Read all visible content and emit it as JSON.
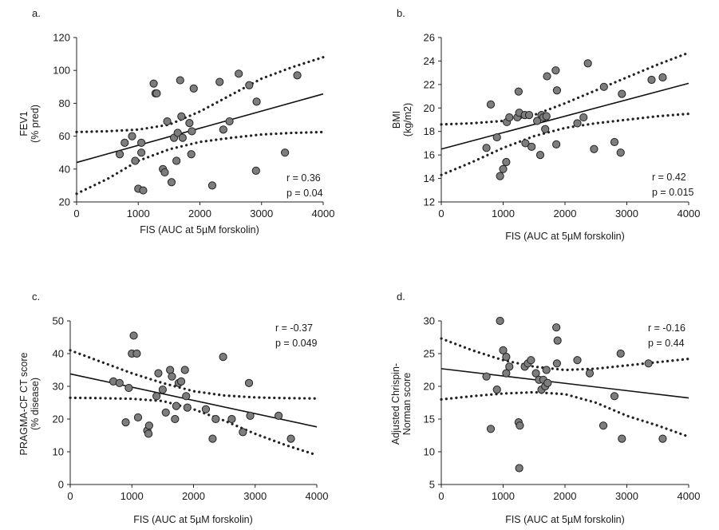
{
  "chart_data": [
    {
      "type": "scatter",
      "panel_label": "a.",
      "title": "",
      "xlabel": "FIS (AUC at 5µM forskolin)",
      "ylabel": [
        "FEV1",
        "(% pred)"
      ],
      "xlim": [
        0,
        4000
      ],
      "ylim": [
        20,
        120
      ],
      "xticks": [
        0,
        1000,
        2000,
        3000,
        4000
      ],
      "yticks": [
        20,
        40,
        60,
        80,
        100,
        120
      ],
      "stats": [
        "r  = 0.36",
        "p = 0.04"
      ],
      "stats_position": "bottom-right",
      "points": [
        [
          700,
          49
        ],
        [
          780,
          56
        ],
        [
          900,
          60
        ],
        [
          950,
          45
        ],
        [
          1000,
          28
        ],
        [
          1050,
          56
        ],
        [
          1050,
          50
        ],
        [
          1080,
          27
        ],
        [
          1250,
          92
        ],
        [
          1280,
          86
        ],
        [
          1300,
          86
        ],
        [
          1400,
          40
        ],
        [
          1430,
          38
        ],
        [
          1470,
          69
        ],
        [
          1540,
          32
        ],
        [
          1580,
          59
        ],
        [
          1620,
          45
        ],
        [
          1640,
          62
        ],
        [
          1680,
          94
        ],
        [
          1700,
          72
        ],
        [
          1720,
          59
        ],
        [
          1830,
          68
        ],
        [
          1860,
          49
        ],
        [
          1870,
          63
        ],
        [
          1900,
          89
        ],
        [
          2200,
          30
        ],
        [
          2320,
          93
        ],
        [
          2380,
          64
        ],
        [
          2480,
          69
        ],
        [
          2630,
          98
        ],
        [
          2800,
          91
        ],
        [
          2910,
          39
        ],
        [
          2920,
          81
        ],
        [
          3380,
          50
        ],
        [
          3580,
          97
        ]
      ],
      "regression": {
        "intercept": 44,
        "slope": 0.01042
      },
      "ci_upper": [
        [
          0,
          62.5
        ],
        [
          500,
          63
        ],
        [
          1000,
          64
        ],
        [
          1500,
          67
        ],
        [
          2000,
          75
        ],
        [
          2500,
          85
        ],
        [
          3000,
          95
        ],
        [
          3500,
          102
        ],
        [
          4000,
          108
        ]
      ],
      "ci_lower": [
        [
          0,
          25
        ],
        [
          500,
          34
        ],
        [
          1000,
          45
        ],
        [
          1500,
          52
        ],
        [
          2000,
          56.5
        ],
        [
          2500,
          59
        ],
        [
          3000,
          61
        ],
        [
          3500,
          62
        ],
        [
          4000,
          62.5
        ]
      ]
    },
    {
      "type": "scatter",
      "panel_label": "b.",
      "title": "",
      "xlabel": "FIS (AUC at 5µM forskolin)",
      "ylabel": [
        "BMI",
        "(kg/m2)"
      ],
      "xlim": [
        0,
        4000
      ],
      "ylim": [
        12,
        26
      ],
      "xticks": [
        0,
        1000,
        2000,
        3000,
        4000
      ],
      "yticks": [
        12,
        14,
        16,
        18,
        20,
        22,
        24,
        26
      ],
      "stats": [
        "r  = 0.42",
        "p = 0.015"
      ],
      "stats_position": "bottom-right",
      "points": [
        [
          730,
          16.6
        ],
        [
          800,
          20.3
        ],
        [
          900,
          17.5
        ],
        [
          950,
          14.2
        ],
        [
          1000,
          14.8
        ],
        [
          1050,
          15.4
        ],
        [
          1060,
          18.8
        ],
        [
          1100,
          19.2
        ],
        [
          1230,
          19.2
        ],
        [
          1250,
          21.4
        ],
        [
          1260,
          19.6
        ],
        [
          1350,
          19.4
        ],
        [
          1360,
          17.0
        ],
        [
          1420,
          19.4
        ],
        [
          1460,
          16.7
        ],
        [
          1550,
          18.9
        ],
        [
          1600,
          16.0
        ],
        [
          1620,
          19.4
        ],
        [
          1650,
          19.2
        ],
        [
          1680,
          18.2
        ],
        [
          1700,
          19.3
        ],
        [
          1710,
          22.7
        ],
        [
          1850,
          23.2
        ],
        [
          1860,
          16.9
        ],
        [
          1870,
          21.5
        ],
        [
          2200,
          18.7
        ],
        [
          2300,
          19.2
        ],
        [
          2370,
          23.8
        ],
        [
          2470,
          16.5
        ],
        [
          2630,
          21.8
        ],
        [
          2800,
          17.1
        ],
        [
          2900,
          16.2
        ],
        [
          2920,
          21.2
        ],
        [
          3400,
          22.4
        ],
        [
          3580,
          22.6
        ]
      ],
      "regression": {
        "intercept": 16.5,
        "slope": 0.0014
      },
      "ci_upper": [
        [
          0,
          18.6
        ],
        [
          500,
          18.7
        ],
        [
          1000,
          18.9
        ],
        [
          1500,
          19.4
        ],
        [
          2000,
          20.4
        ],
        [
          2500,
          21.5
        ],
        [
          3000,
          22.6
        ],
        [
          3500,
          23.7
        ],
        [
          4000,
          24.7
        ]
      ],
      "ci_lower": [
        [
          0,
          14.3
        ],
        [
          500,
          15.4
        ],
        [
          1000,
          16.6
        ],
        [
          1500,
          17.6
        ],
        [
          2000,
          18.3
        ],
        [
          2500,
          18.7
        ],
        [
          3000,
          19.0
        ],
        [
          3500,
          19.3
        ],
        [
          4000,
          19.5
        ]
      ]
    },
    {
      "type": "scatter",
      "panel_label": "c.",
      "title": "",
      "xlabel": "FIS (AUC at 5µM forskolin)",
      "ylabel": [
        "PRAGMA-CF CT score",
        "(% disease)"
      ],
      "xlim": [
        0,
        4000
      ],
      "ylim": [
        0,
        50
      ],
      "xticks": [
        0,
        1000,
        2000,
        3000,
        4000
      ],
      "yticks": [
        0,
        10,
        20,
        30,
        40,
        50
      ],
      "stats": [
        "r  = -0.37",
        "p = 0.049"
      ],
      "stats_position": "top-right",
      "points": [
        [
          700,
          31.5
        ],
        [
          800,
          31
        ],
        [
          900,
          19
        ],
        [
          950,
          29.5
        ],
        [
          1000,
          40
        ],
        [
          1030,
          45.5
        ],
        [
          1080,
          40
        ],
        [
          1100,
          20.5
        ],
        [
          1250,
          16.5
        ],
        [
          1270,
          15.5
        ],
        [
          1280,
          18
        ],
        [
          1400,
          27
        ],
        [
          1430,
          34
        ],
        [
          1500,
          29
        ],
        [
          1550,
          22
        ],
        [
          1620,
          35
        ],
        [
          1650,
          33
        ],
        [
          1700,
          20
        ],
        [
          1720,
          24
        ],
        [
          1760,
          31
        ],
        [
          1800,
          31.5
        ],
        [
          1860,
          35
        ],
        [
          1880,
          27
        ],
        [
          1900,
          23.5
        ],
        [
          2200,
          23
        ],
        [
          2310,
          14
        ],
        [
          2360,
          20
        ],
        [
          2480,
          39
        ],
        [
          2620,
          20
        ],
        [
          2800,
          16
        ],
        [
          2900,
          31
        ],
        [
          2920,
          21
        ],
        [
          3380,
          21
        ],
        [
          3580,
          14
        ]
      ],
      "regression": {
        "intercept": 33.8,
        "slope": -0.00405
      },
      "ci_upper": [
        [
          0,
          41
        ],
        [
          500,
          37.5
        ],
        [
          1000,
          34
        ],
        [
          1500,
          31
        ],
        [
          2000,
          28.5
        ],
        [
          2500,
          27.2
        ],
        [
          3000,
          26.6
        ],
        [
          3500,
          26.4
        ],
        [
          4000,
          26.3
        ]
      ],
      "ci_lower": [
        [
          0,
          26.5
        ],
        [
          500,
          26.4
        ],
        [
          1000,
          26.2
        ],
        [
          1500,
          25.5
        ],
        [
          2000,
          23
        ],
        [
          2500,
          19.5
        ],
        [
          3000,
          15.5
        ],
        [
          3500,
          12
        ],
        [
          4000,
          9
        ]
      ]
    },
    {
      "type": "scatter",
      "panel_label": "d.",
      "title": "",
      "xlabel": "FIS (AUC at 5µM forskolin)",
      "ylabel": [
        "Adjusted Chrispin-",
        "Norman score"
      ],
      "xlim": [
        0,
        4000
      ],
      "ylim": [
        5,
        30
      ],
      "xticks": [
        0,
        1000,
        2000,
        3000,
        4000
      ],
      "yticks": [
        5,
        10,
        15,
        20,
        25,
        30
      ],
      "stats": [
        "r  = -0.16",
        "p = 0.44"
      ],
      "stats_position": "top-right",
      "points": [
        [
          730,
          21.5
        ],
        [
          800,
          13.5
        ],
        [
          900,
          19.5
        ],
        [
          950,
          30
        ],
        [
          1000,
          25.5
        ],
        [
          1050,
          24.5
        ],
        [
          1050,
          22
        ],
        [
          1100,
          23
        ],
        [
          1250,
          14.5
        ],
        [
          1260,
          7.5
        ],
        [
          1270,
          14
        ],
        [
          1350,
          23
        ],
        [
          1400,
          23.5
        ],
        [
          1450,
          24
        ],
        [
          1530,
          22
        ],
        [
          1580,
          21
        ],
        [
          1620,
          19.5
        ],
        [
          1650,
          21
        ],
        [
          1680,
          20
        ],
        [
          1700,
          22.5
        ],
        [
          1720,
          20.5
        ],
        [
          1860,
          29
        ],
        [
          1880,
          27
        ],
        [
          1870,
          23.5
        ],
        [
          2200,
          24
        ],
        [
          2400,
          22
        ],
        [
          2620,
          14
        ],
        [
          2800,
          18.5
        ],
        [
          2900,
          25
        ],
        [
          2920,
          12
        ],
        [
          3350,
          23.5
        ],
        [
          3580,
          12
        ]
      ],
      "regression": {
        "intercept": 22.7,
        "slope": -0.00112
      },
      "ci_upper": [
        [
          0,
          27.3
        ],
        [
          500,
          25.5
        ],
        [
          1000,
          24
        ],
        [
          1500,
          23
        ],
        [
          2000,
          22.5
        ],
        [
          2500,
          22.7
        ],
        [
          3000,
          23.2
        ],
        [
          3500,
          23.7
        ],
        [
          4000,
          24.2
        ]
      ],
      "ci_lower": [
        [
          0,
          18
        ],
        [
          500,
          18.5
        ],
        [
          1000,
          18.9
        ],
        [
          1500,
          19.1
        ],
        [
          2000,
          18.8
        ],
        [
          2500,
          17.5
        ],
        [
          3000,
          15.5
        ],
        [
          3500,
          14
        ],
        [
          4000,
          12.3
        ]
      ]
    }
  ]
}
